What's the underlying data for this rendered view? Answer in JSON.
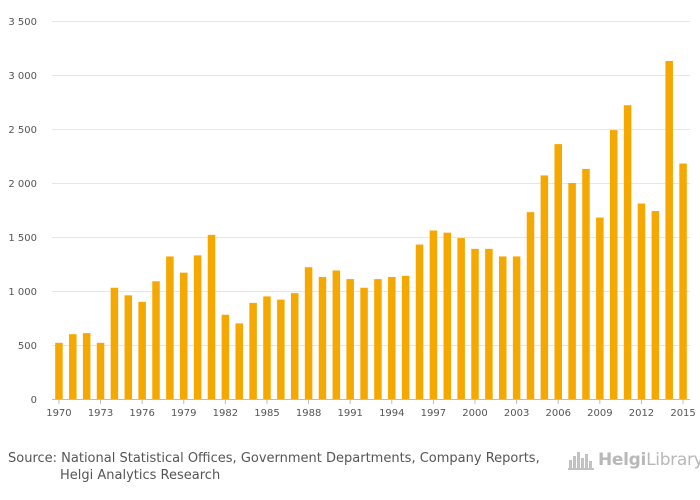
{
  "chart_data": {
    "type": "bar",
    "title": "",
    "xlabel": "",
    "ylabel": "",
    "color": "#F5A800",
    "ylim": [
      0,
      3500
    ],
    "yticks": [
      0,
      500,
      1000,
      1500,
      2000,
      2500,
      3000,
      3500
    ],
    "ytick_labels": [
      "0",
      "500",
      "1 000",
      "1 500",
      "2 000",
      "2 500",
      "3 000",
      "3 500"
    ],
    "xtick_labels": [
      "1970",
      "1973",
      "1976",
      "1979",
      "1982",
      "1985",
      "1988",
      "1991",
      "1994",
      "1997",
      "2000",
      "2003",
      "2006",
      "2009",
      "2012",
      "2015"
    ],
    "categories": [
      "1970",
      "1971",
      "1972",
      "1973",
      "1974",
      "1975",
      "1976",
      "1977",
      "1978",
      "1979",
      "1980",
      "1981",
      "1982",
      "1983",
      "1984",
      "1985",
      "1986",
      "1987",
      "1988",
      "1989",
      "1990",
      "1991",
      "1992",
      "1993",
      "1994",
      "1995",
      "1996",
      "1997",
      "1998",
      "1999",
      "2000",
      "2001",
      "2002",
      "2003",
      "2004",
      "2005",
      "2006",
      "2007",
      "2008",
      "2009",
      "2010",
      "2011",
      "2012",
      "2013",
      "2014",
      "2015"
    ],
    "values": [
      520,
      600,
      610,
      520,
      1030,
      960,
      900,
      1090,
      1320,
      1170,
      1330,
      1520,
      780,
      700,
      890,
      950,
      920,
      980,
      1220,
      1130,
      1190,
      1110,
      1030,
      1110,
      1130,
      1140,
      1430,
      1560,
      1540,
      1490,
      1390,
      1390,
      1320,
      1320,
      1730,
      2070,
      2360,
      2000,
      2130,
      1680,
      2490,
      2720,
      1810,
      1740,
      3130,
      2180
    ]
  },
  "footer": {
    "source_line1": "Source: National Statistical Offices, Government Departments, Company Reports,",
    "source_line2": "Helgi Analytics Research",
    "brand_bold": "Helgi",
    "brand_light": "Library."
  }
}
